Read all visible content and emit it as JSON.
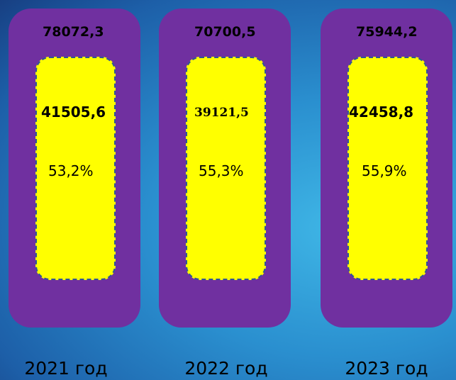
{
  "columns": [
    {
      "total": "78072,3",
      "part": "41505,6",
      "share": "53,2%",
      "year": "2021 год"
    },
    {
      "total": "70700,5",
      "part": "39121,5",
      "share": "55,3%",
      "year": "2022 год"
    },
    {
      "total": "75944,2",
      "part": "42458,8",
      "share": "55,9%",
      "year": "2023 год"
    }
  ]
}
